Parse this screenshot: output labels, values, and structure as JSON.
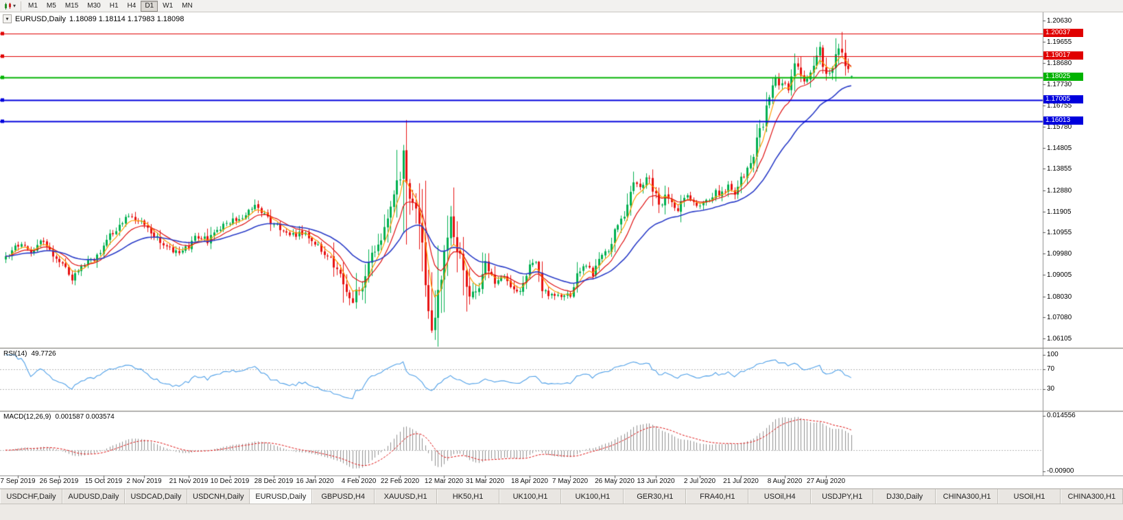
{
  "toolbar": {
    "timeframes": [
      "M1",
      "M5",
      "M15",
      "M30",
      "H1",
      "H4",
      "D1",
      "W1",
      "MN"
    ],
    "active_timeframe": "D1"
  },
  "chart": {
    "title": "EURUSD,Daily",
    "ohlc_text": "1.18089 1.18114 1.17983 1.18098",
    "price_scale_labels": [
      "1.20630",
      "1.19655",
      "1.18680",
      "1.17730",
      "1.16755",
      "1.15780",
      "1.14805",
      "1.13855",
      "1.12880",
      "1.11905",
      "1.10955",
      "1.09980",
      "1.09005",
      "1.08030",
      "1.07080",
      "1.06105"
    ]
  },
  "rsi": {
    "label": "RSI(14)",
    "value": "49.7726",
    "scale_labels": [
      "100",
      "70",
      "30"
    ]
  },
  "macd": {
    "label": "MACD(12,26,9)",
    "values": "0.001587 0.003574",
    "scale_top": "0.014556",
    "scale_bottom": "-0.00900"
  },
  "tabs": {
    "active_index": 4,
    "items": [
      "USDCHF,Daily",
      "AUDUSD,Daily",
      "USDCAD,Daily",
      "USDCNH,Daily",
      "EURUSD,Daily",
      "GBPUSD,H4",
      "XAUUSD,H1",
      "HK50,H1",
      "UK100,H1",
      "UK100,H1",
      "GER30,H1",
      "FRA40,H1",
      "USOil,H4",
      "USDJPY,H1",
      "DJ30,Daily",
      "CHINA300,H1",
      "USOil,H1",
      "CHINA300,H1"
    ]
  },
  "chart_data": {
    "type": "candlestick",
    "symbol": "EURUSD",
    "timeframe": "Daily",
    "title": "EURUSD,Daily",
    "current_ohlc": {
      "open": 1.18089,
      "high": 1.18114,
      "low": 1.17983,
      "close": 1.18098
    },
    "y_axis": {
      "top": 1.2063,
      "bottom": 1.06105
    },
    "bars": 269,
    "close_waypoints": [
      [
        0,
        1.099
      ],
      [
        4,
        1.1035
      ],
      [
        8,
        1.1005
      ],
      [
        11,
        1.107
      ],
      [
        14,
        1.101
      ],
      [
        18,
        1.095
      ],
      [
        21,
        1.089
      ],
      [
        25,
        1.095
      ],
      [
        29,
        1.099
      ],
      [
        33,
        1.108
      ],
      [
        37,
        1.115
      ],
      [
        41,
        1.116
      ],
      [
        45,
        1.111
      ],
      [
        49,
        1.105
      ],
      [
        53,
        1.101
      ],
      [
        57,
        1.102
      ],
      [
        61,
        1.108
      ],
      [
        64,
        1.106
      ],
      [
        68,
        1.111
      ],
      [
        72,
        1.115
      ],
      [
        76,
        1.118
      ],
      [
        79,
        1.121
      ],
      [
        83,
        1.116
      ],
      [
        87,
        1.111
      ],
      [
        91,
        1.109
      ],
      [
        95,
        1.108
      ],
      [
        99,
        1.103
      ],
      [
        103,
        1.098
      ],
      [
        107,
        1.087
      ],
      [
        110,
        1.079
      ],
      [
        113,
        1.086
      ],
      [
        116,
        1.1
      ],
      [
        118,
        1.103
      ],
      [
        121,
        1.113
      ],
      [
        124,
        1.13
      ],
      [
        126,
        1.144
      ],
      [
        128,
        1.128
      ],
      [
        130,
        1.118
      ],
      [
        132,
        1.106
      ],
      [
        134,
        1.072
      ],
      [
        135,
        1.066
      ],
      [
        137,
        1.08
      ],
      [
        139,
        1.104
      ],
      [
        141,
        1.114
      ],
      [
        143,
        1.103
      ],
      [
        145,
        1.091
      ],
      [
        147,
        1.08
      ],
      [
        150,
        1.087
      ],
      [
        152,
        1.097
      ],
      [
        155,
        1.085
      ],
      [
        158,
        1.089
      ],
      [
        161,
        1.082
      ],
      [
        164,
        1.085
      ],
      [
        166,
        1.095
      ],
      [
        168,
        1.097
      ],
      [
        170,
        1.084
      ],
      [
        173,
        1.08
      ],
      [
        176,
        1.0815
      ],
      [
        179,
        1.0795
      ],
      [
        181,
        1.091
      ],
      [
        184,
        1.095
      ],
      [
        186,
        1.09
      ],
      [
        188,
        1.098
      ],
      [
        191,
        1.101
      ],
      [
        193,
        1.11
      ],
      [
        196,
        1.117
      ],
      [
        199,
        1.133
      ],
      [
        201,
        1.129
      ],
      [
        203,
        1.135
      ],
      [
        205,
        1.13
      ],
      [
        207,
        1.122
      ],
      [
        209,
        1.126
      ],
      [
        211,
        1.122
      ],
      [
        213,
        1.118
      ],
      [
        215,
        1.126
      ],
      [
        217,
        1.125
      ],
      [
        219,
        1.122
      ],
      [
        221,
        1.124
      ],
      [
        223,
        1.125
      ],
      [
        225,
        1.128
      ],
      [
        227,
        1.127
      ],
      [
        229,
        1.13
      ],
      [
        231,
        1.126
      ],
      [
        233,
        1.134
      ],
      [
        235,
        1.138
      ],
      [
        236,
        1.14
      ],
      [
        238,
        1.152
      ],
      [
        240,
        1.159
      ],
      [
        241,
        1.166
      ],
      [
        243,
        1.175
      ],
      [
        244,
        1.179
      ],
      [
        246,
        1.178
      ],
      [
        248,
        1.176
      ],
      [
        250,
        1.186
      ],
      [
        252,
        1.181
      ],
      [
        254,
        1.179
      ],
      [
        256,
        1.185
      ],
      [
        258,
        1.193
      ],
      [
        260,
        1.18
      ],
      [
        262,
        1.184
      ],
      [
        263,
        1.19
      ],
      [
        264,
        1.194
      ],
      [
        265,
        1.1911
      ],
      [
        266,
        1.185
      ],
      [
        267,
        1.1845
      ],
      [
        268,
        1.18098
      ]
    ],
    "bar_anchors": {
      "110": {
        "low": 1.0778
      },
      "126": {
        "high": 1.1495
      },
      "135": {
        "low": 1.0636
      },
      "258": {
        "high": 1.1966
      },
      "265": {
        "high": 1.2011
      },
      "268": {
        "open": 1.18089,
        "high": 1.18114,
        "low": 1.17983,
        "close": 1.18098
      }
    },
    "volatility_zones": [
      [
        104,
        152,
        2.0
      ],
      [
        124,
        140,
        2.8
      ],
      [
        195,
        215,
        1.3
      ],
      [
        236,
        268,
        1.4
      ]
    ],
    "horizontal_lines": [
      {
        "price": 1.20037,
        "color": "#e00000",
        "width": 1
      },
      {
        "price": 1.19017,
        "color": "#e00000",
        "width": 1
      },
      {
        "price": 1.18025,
        "color": "#00b300",
        "width": 2
      },
      {
        "price": 1.17005,
        "color": "#0000dd",
        "width": 2
      },
      {
        "price": 1.16013,
        "color": "#0000dd",
        "width": 2
      }
    ],
    "date_ticks": [
      [
        4,
        "7 Sep 2019"
      ],
      [
        17,
        "26 Sep 2019"
      ],
      [
        31,
        "15 Oct 2019"
      ],
      [
        44,
        "2 Nov 2019"
      ],
      [
        58,
        "21 Nov 2019"
      ],
      [
        71,
        "10 Dec 2019"
      ],
      [
        85,
        "28 Dec 2019"
      ],
      [
        98,
        "16 Jan 2020"
      ],
      [
        112,
        "4 Feb 2020"
      ],
      [
        125,
        "22 Feb 2020"
      ],
      [
        139,
        "12 Mar 2020"
      ],
      [
        152,
        "31 Mar 2020"
      ],
      [
        166,
        "18 Apr 2020"
      ],
      [
        179,
        "7 May 2020"
      ],
      [
        193,
        "26 May 2020"
      ],
      [
        206,
        "13 Jun 2020"
      ],
      [
        220,
        "2 Jul 2020"
      ],
      [
        233,
        "21 Jul 2020"
      ],
      [
        247,
        "8 Aug 2020"
      ],
      [
        260,
        "27 Aug 2020"
      ]
    ],
    "candle_up_color": "#00b050",
    "candle_down_color": "#e81010",
    "moving_averages": [
      {
        "period": 5,
        "type": "ema",
        "color": "#ff9c00",
        "width": 1.2
      },
      {
        "period": 11,
        "type": "ema",
        "color": "#e01010",
        "width": 1.2
      },
      {
        "period": 30,
        "type": "ema",
        "color": "#2a3cc8",
        "width": 1.6
      }
    ],
    "rsi": {
      "period": 14,
      "last_value": 49.7726,
      "color": "#4d9fe8",
      "levels": [
        70,
        30
      ]
    },
    "macd": {
      "fast": 12,
      "slow": 26,
      "signal_period": 9,
      "last_macd": 0.001587,
      "last_signal": 0.003574,
      "scale_top": 0.014556,
      "scale_bottom": -0.009,
      "histogram_color": "#909090",
      "signal_color": "#e01010"
    }
  }
}
